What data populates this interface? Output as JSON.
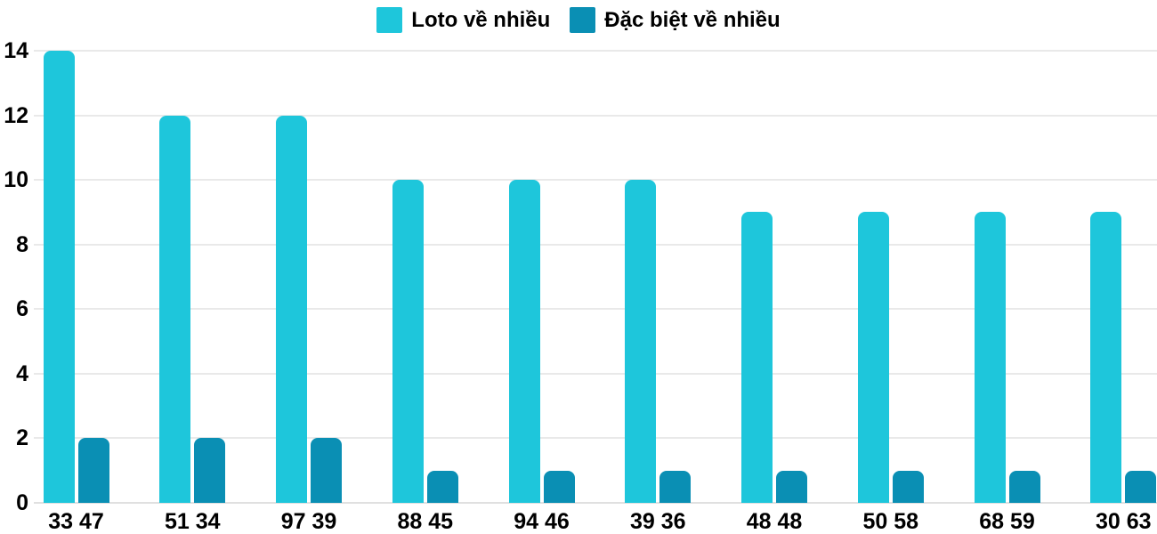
{
  "chart_data": {
    "type": "bar",
    "categories": [
      "33 47",
      "51 34",
      "97 39",
      "88 45",
      "94 46",
      "39 36",
      "48 48",
      "50 58",
      "68 59",
      "30 63"
    ],
    "series": [
      {
        "name": "Loto về nhiều",
        "color": "#1EC6DB",
        "values": [
          14,
          12,
          12,
          10,
          10,
          10,
          9,
          9,
          9,
          9
        ]
      },
      {
        "name": "Đặc biệt về nhiều",
        "color": "#0A8FB4",
        "values": [
          2,
          2,
          2,
          1,
          1,
          1,
          1,
          1,
          1,
          1
        ]
      }
    ],
    "title": "",
    "xlabel": "",
    "ylabel": "",
    "ylim": [
      0,
      14
    ],
    "yticks": [
      0,
      2,
      4,
      6,
      8,
      10,
      12,
      14
    ],
    "grid": true,
    "legend_position": "top"
  },
  "colors": {
    "background": "#ffffff",
    "gridline": "#e9e9e9",
    "baseline": "#e0e0e0",
    "text": "#000000"
  }
}
